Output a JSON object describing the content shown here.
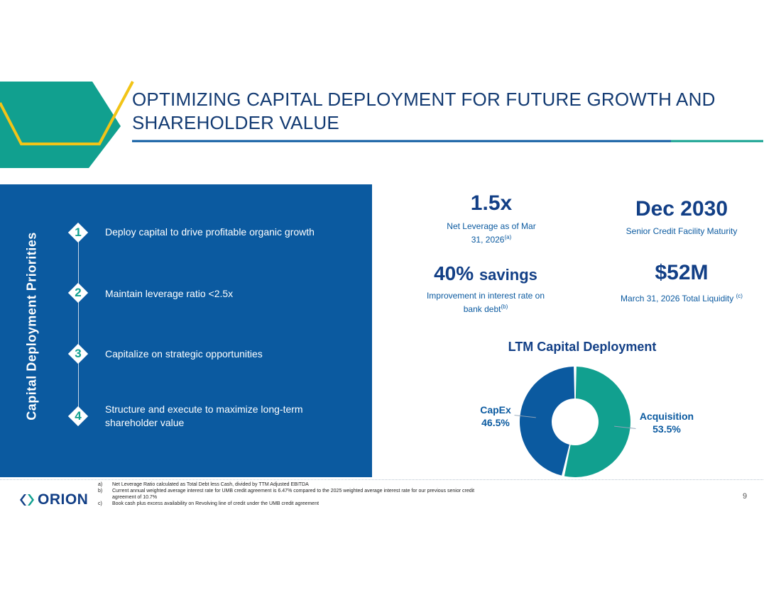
{
  "slide": {
    "title": "OPTIMIZING CAPITAL DEPLOYMENT FOR FUTURE GROWTH AND SHAREHOLDER VALUE",
    "page_number": "9"
  },
  "colors": {
    "navy": "#123f86",
    "panel_blue": "#0b5aa0",
    "teal": "#11a08f",
    "yellow": "#f2c417"
  },
  "priorities": {
    "heading": "Capital Deployment Priorities",
    "items": [
      {
        "num": "1",
        "text": "Deploy capital to drive profitable organic growth"
      },
      {
        "num": "2",
        "text": "Maintain leverage ratio <2.5x"
      },
      {
        "num": "3",
        "text": "Capitalize on strategic opportunities"
      },
      {
        "num": "4",
        "text": "Structure and execute to maximize long-term shareholder value"
      }
    ]
  },
  "kpis": [
    {
      "value": "1.5x",
      "label": "Net Leverage as of Mar 31, 2026",
      "note": "(a)"
    },
    {
      "value": "Dec 2030",
      "label": "Senior Credit Facility Maturity",
      "note": ""
    },
    {
      "value": "40%",
      "value_suffix": "savings",
      "label": "Improvement in interest rate on bank debt",
      "note": "(b)"
    },
    {
      "value": "$52M",
      "label": "March 31, 2026 Total Liquidity",
      "note": "(c)"
    }
  ],
  "chart_data": {
    "type": "pie",
    "title": "LTM Capital Deployment",
    "labels": [
      "Acquisition",
      "CapEx"
    ],
    "values": [
      53.5,
      46.5
    ],
    "value_labels": [
      "53.5%",
      "46.5%"
    ],
    "colors": [
      "#11a08f",
      "#0b5aa0"
    ],
    "donut": true
  },
  "footer": {
    "logo_text": "ORION",
    "footnotes": [
      {
        "letter": "a)",
        "text": "Net Leverage Ratio calculated as Total Debt less Cash, divided by TTM Adjusted EBITDA"
      },
      {
        "letter": "b)",
        "text": "Current annual weighted average interest rate for UMB credit agreement is 6.47% compared to the 2025 weighted average interest rate for our previous senior credit agreement of 10.7%"
      },
      {
        "letter": "c)",
        "text": "Book cash plus excess availability on Revolving line of credit under the UMB credit agreement"
      }
    ]
  }
}
